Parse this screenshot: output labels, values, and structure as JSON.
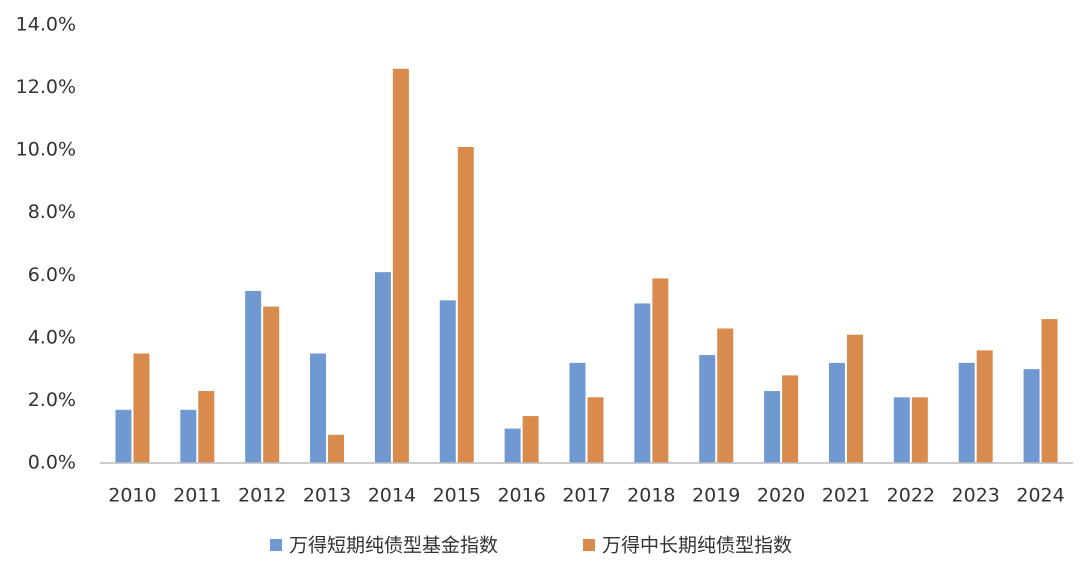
{
  "chart_data": {
    "type": "bar",
    "categories": [
      "2010",
      "2011",
      "2012",
      "2013",
      "2014",
      "2015",
      "2016",
      "2017",
      "2018",
      "2019",
      "2020",
      "2021",
      "2022",
      "2023",
      "2024"
    ],
    "series": [
      {
        "name": "万得短期纯债型基金指数",
        "color": "#7199d1",
        "values": [
          1.7,
          1.7,
          5.5,
          3.5,
          6.1,
          5.2,
          1.1,
          3.2,
          5.1,
          3.45,
          2.3,
          3.2,
          2.1,
          3.2,
          3.0
        ]
      },
      {
        "name": "万得中长期纯债型指数",
        "color": "#d98b4e",
        "values": [
          3.5,
          2.3,
          5.0,
          0.9,
          12.6,
          10.1,
          1.5,
          2.1,
          5.9,
          4.3,
          2.8,
          4.1,
          2.1,
          3.6,
          4.6
        ]
      }
    ],
    "ylim": [
      0,
      14
    ],
    "yticks": [
      {
        "value": 0,
        "label": "0.0%"
      },
      {
        "value": 2,
        "label": "2.0%"
      },
      {
        "value": 4,
        "label": "4.0%"
      },
      {
        "value": 6,
        "label": "6.0%"
      },
      {
        "value": 8,
        "label": "8.0%"
      },
      {
        "value": 10,
        "label": "10.0%"
      },
      {
        "value": 12,
        "label": "12.0%"
      },
      {
        "value": 14,
        "label": "14.0%"
      }
    ],
    "grid": false,
    "legend": "bottom"
  }
}
